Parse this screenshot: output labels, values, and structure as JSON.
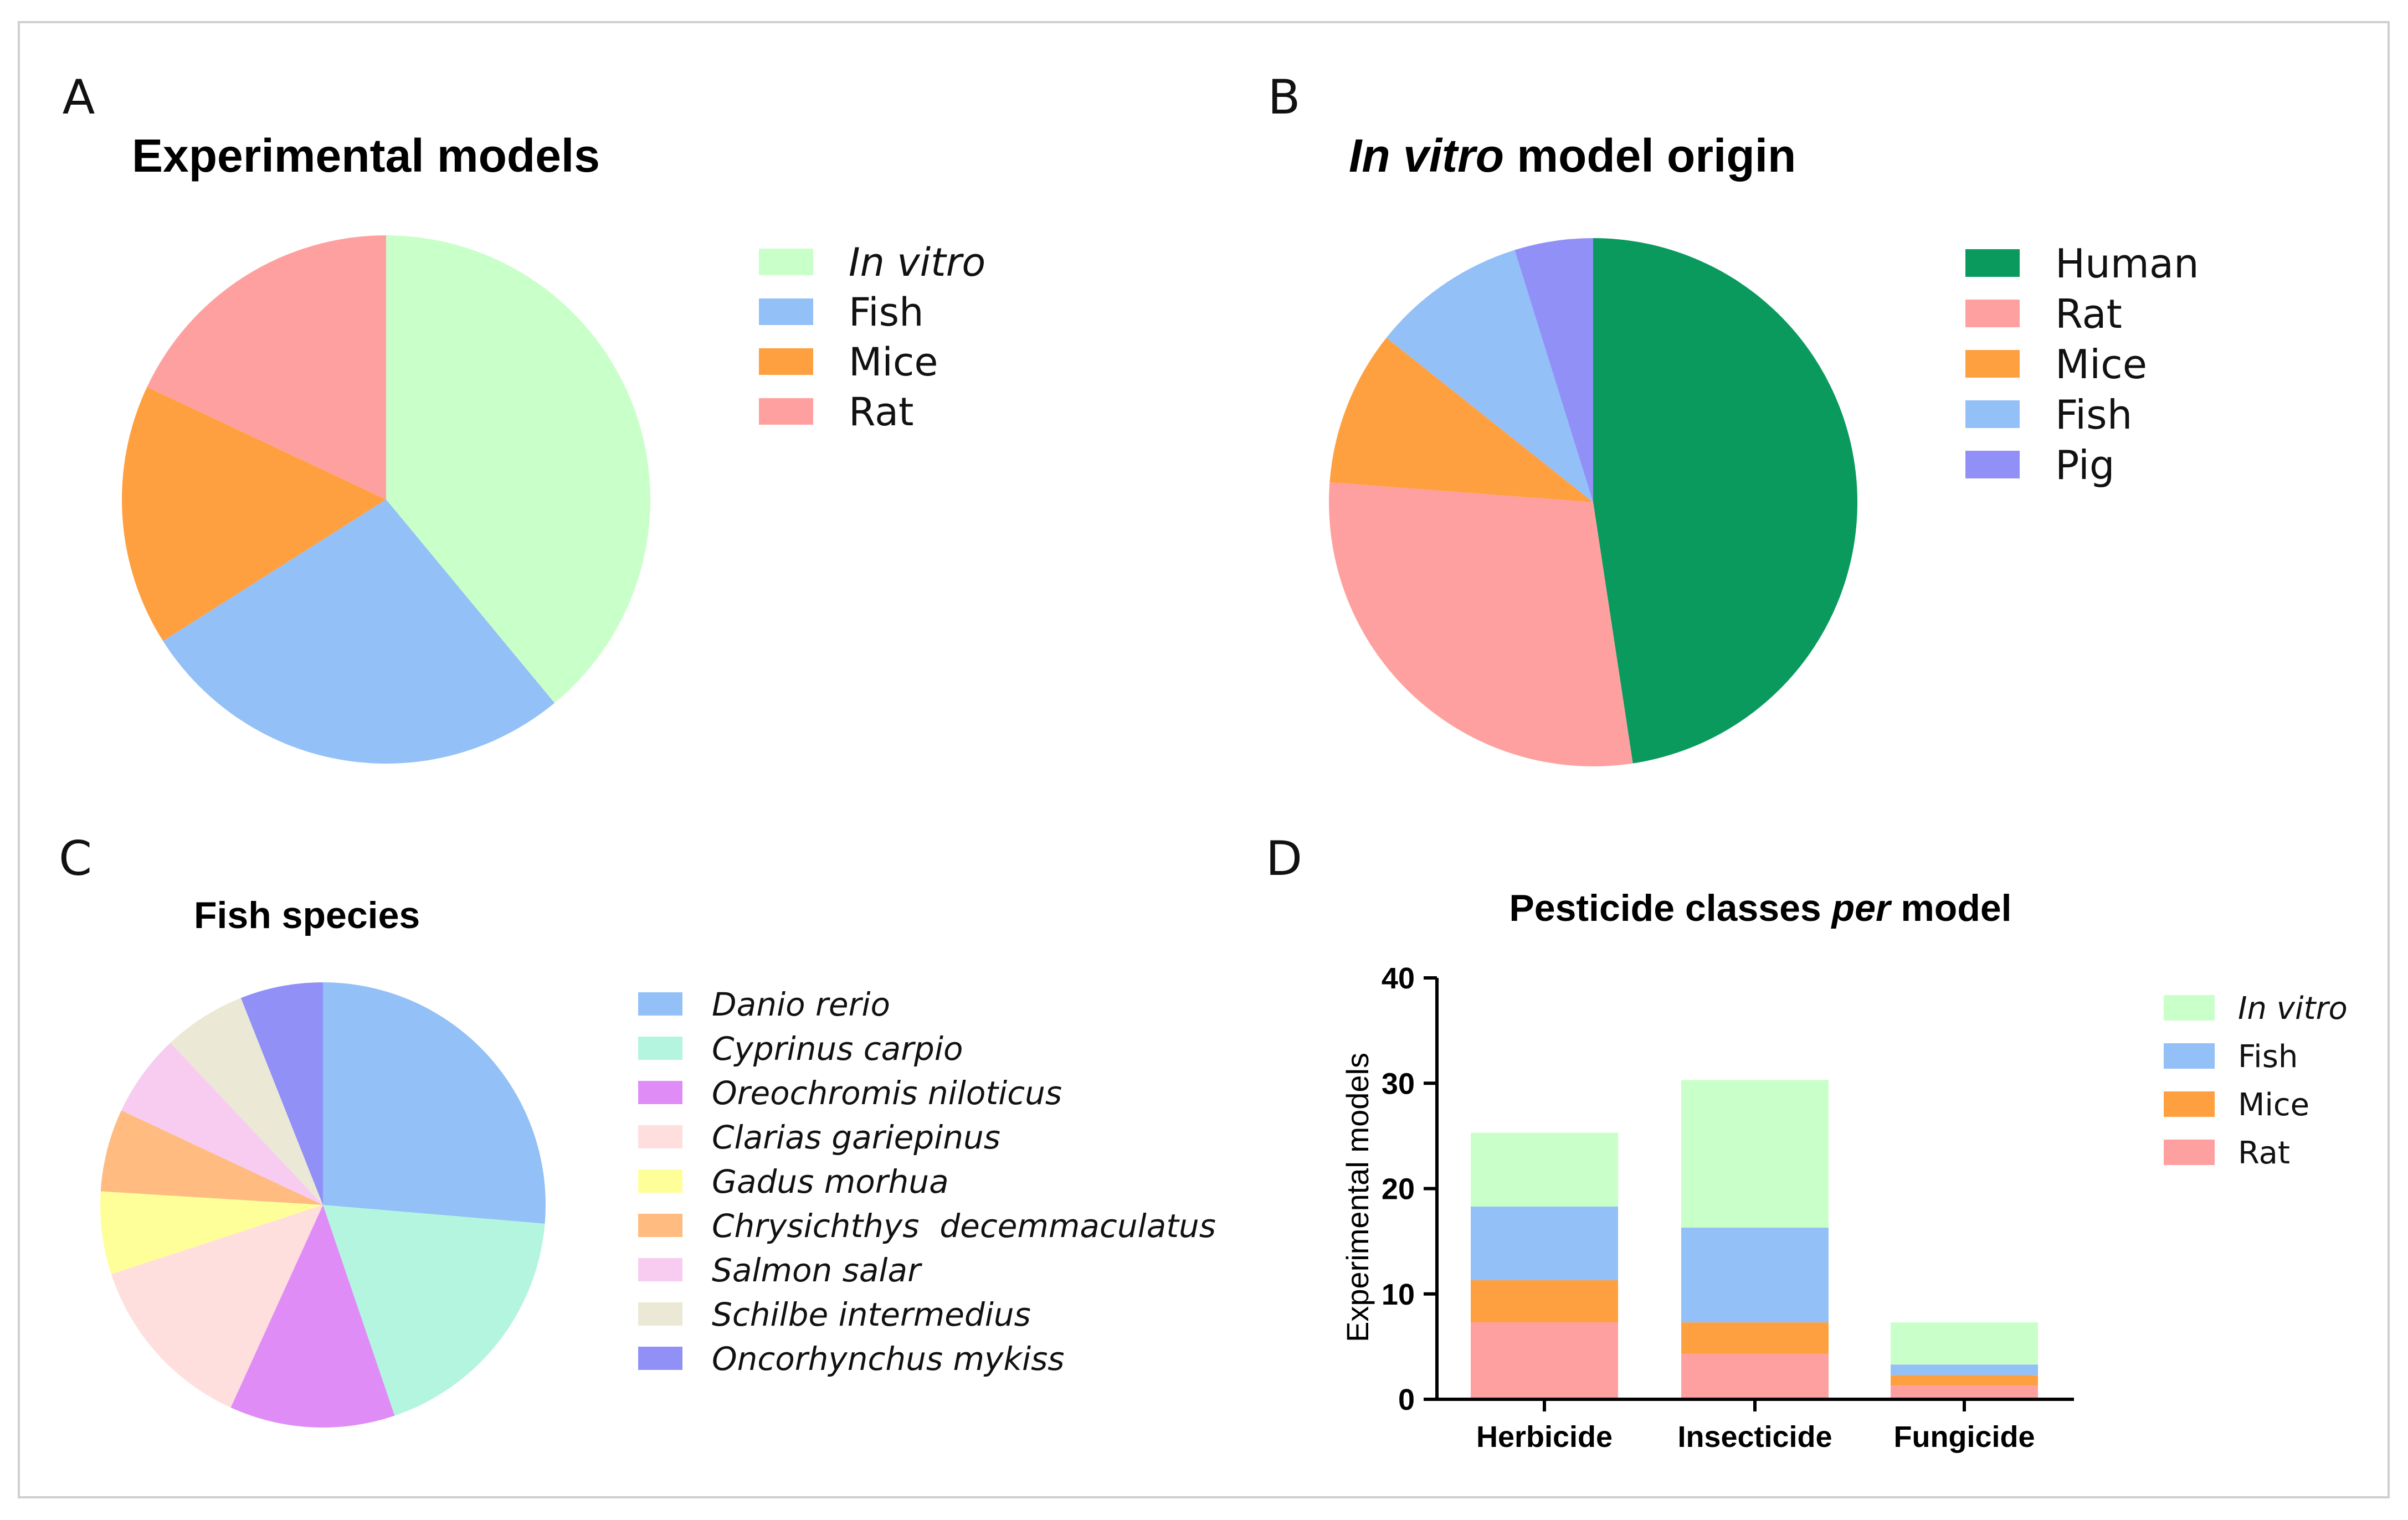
{
  "panels": [
    {
      "letter": "A"
    },
    {
      "letter": "B"
    },
    {
      "letter": "C"
    },
    {
      "letter": "D"
    }
  ],
  "chart_data": [
    {
      "type": "pie",
      "panel": "A",
      "title": "Experimental models",
      "title_italic_prefix": "",
      "legend_italic": [
        true,
        false,
        false,
        false
      ],
      "categories": [
        "In vitro",
        "Fish",
        "Mice",
        "Rat"
      ],
      "values": [
        39,
        27,
        16,
        18
      ],
      "colors": [
        "#c9ffc9",
        "#93c0f7",
        "#ffa040",
        "#ffa0a0"
      ]
    },
    {
      "type": "pie",
      "panel": "B",
      "title": " model origin",
      "title_italic_prefix": "In vitro",
      "legend_italic": [
        false,
        false,
        false,
        false,
        false
      ],
      "categories": [
        "Human",
        "Rat",
        "Mice",
        "Fish",
        "Pig"
      ],
      "values": [
        47.6,
        28.6,
        9.5,
        9.5,
        4.8
      ],
      "colors": [
        "#0a9a5e",
        "#ffa0a0",
        "#ffa040",
        "#93c0f7",
        "#9090f7"
      ]
    },
    {
      "type": "pie",
      "panel": "C",
      "title": "Fish species",
      "title_italic_prefix": "",
      "legend_italic": [
        true,
        true,
        true,
        true,
        true,
        true,
        true,
        true,
        true
      ],
      "categories": [
        "Danio rerio",
        "Cyprinus carpio",
        "Oreochromis niloticus",
        "Clarias gariepinus",
        "Gadus morhua",
        "Chrysichthys  decemmaculatus",
        "Salmon salar",
        "Schilbe intermedius",
        "Oncorhynchus mykiss"
      ],
      "values": [
        25,
        17.5,
        11.4,
        12.5,
        5.7,
        5.7,
        5.7,
        5.7,
        5.7
      ],
      "colors": [
        "#93c0f7",
        "#b3f5de",
        "#df8cf7",
        "#ffdede",
        "#ffff99",
        "#ffbb80",
        "#f7ccf0",
        "#ece8d6",
        "#9090f7"
      ]
    },
    {
      "type": "bar",
      "stacked": true,
      "panel": "D",
      "title_parts": [
        "Pesticide classes ",
        "per",
        " model"
      ],
      "categories": [
        "Herbicide",
        "Insecticide",
        "Fungicide"
      ],
      "series": [
        {
          "name": "Rat",
          "values": [
            7.3,
            4.3,
            1.3
          ],
          "color": "#ffa0a0",
          "italic": false
        },
        {
          "name": "Mice",
          "values": [
            4,
            3,
            1
          ],
          "color": "#ffa040",
          "italic": false
        },
        {
          "name": "Fish",
          "values": [
            7,
            9,
            1
          ],
          "color": "#93c0f7",
          "italic": false
        },
        {
          "name": "In vitro",
          "values": [
            7,
            14,
            4
          ],
          "color": "#c9ffc9",
          "italic": true
        }
      ],
      "legend_order": [
        "In vitro",
        "Fish",
        "Mice",
        "Rat"
      ],
      "ylabel": "Experimental models",
      "xlabel": "",
      "ylim": [
        0,
        40
      ],
      "yticks": [
        0,
        10,
        20,
        30,
        40
      ]
    }
  ]
}
